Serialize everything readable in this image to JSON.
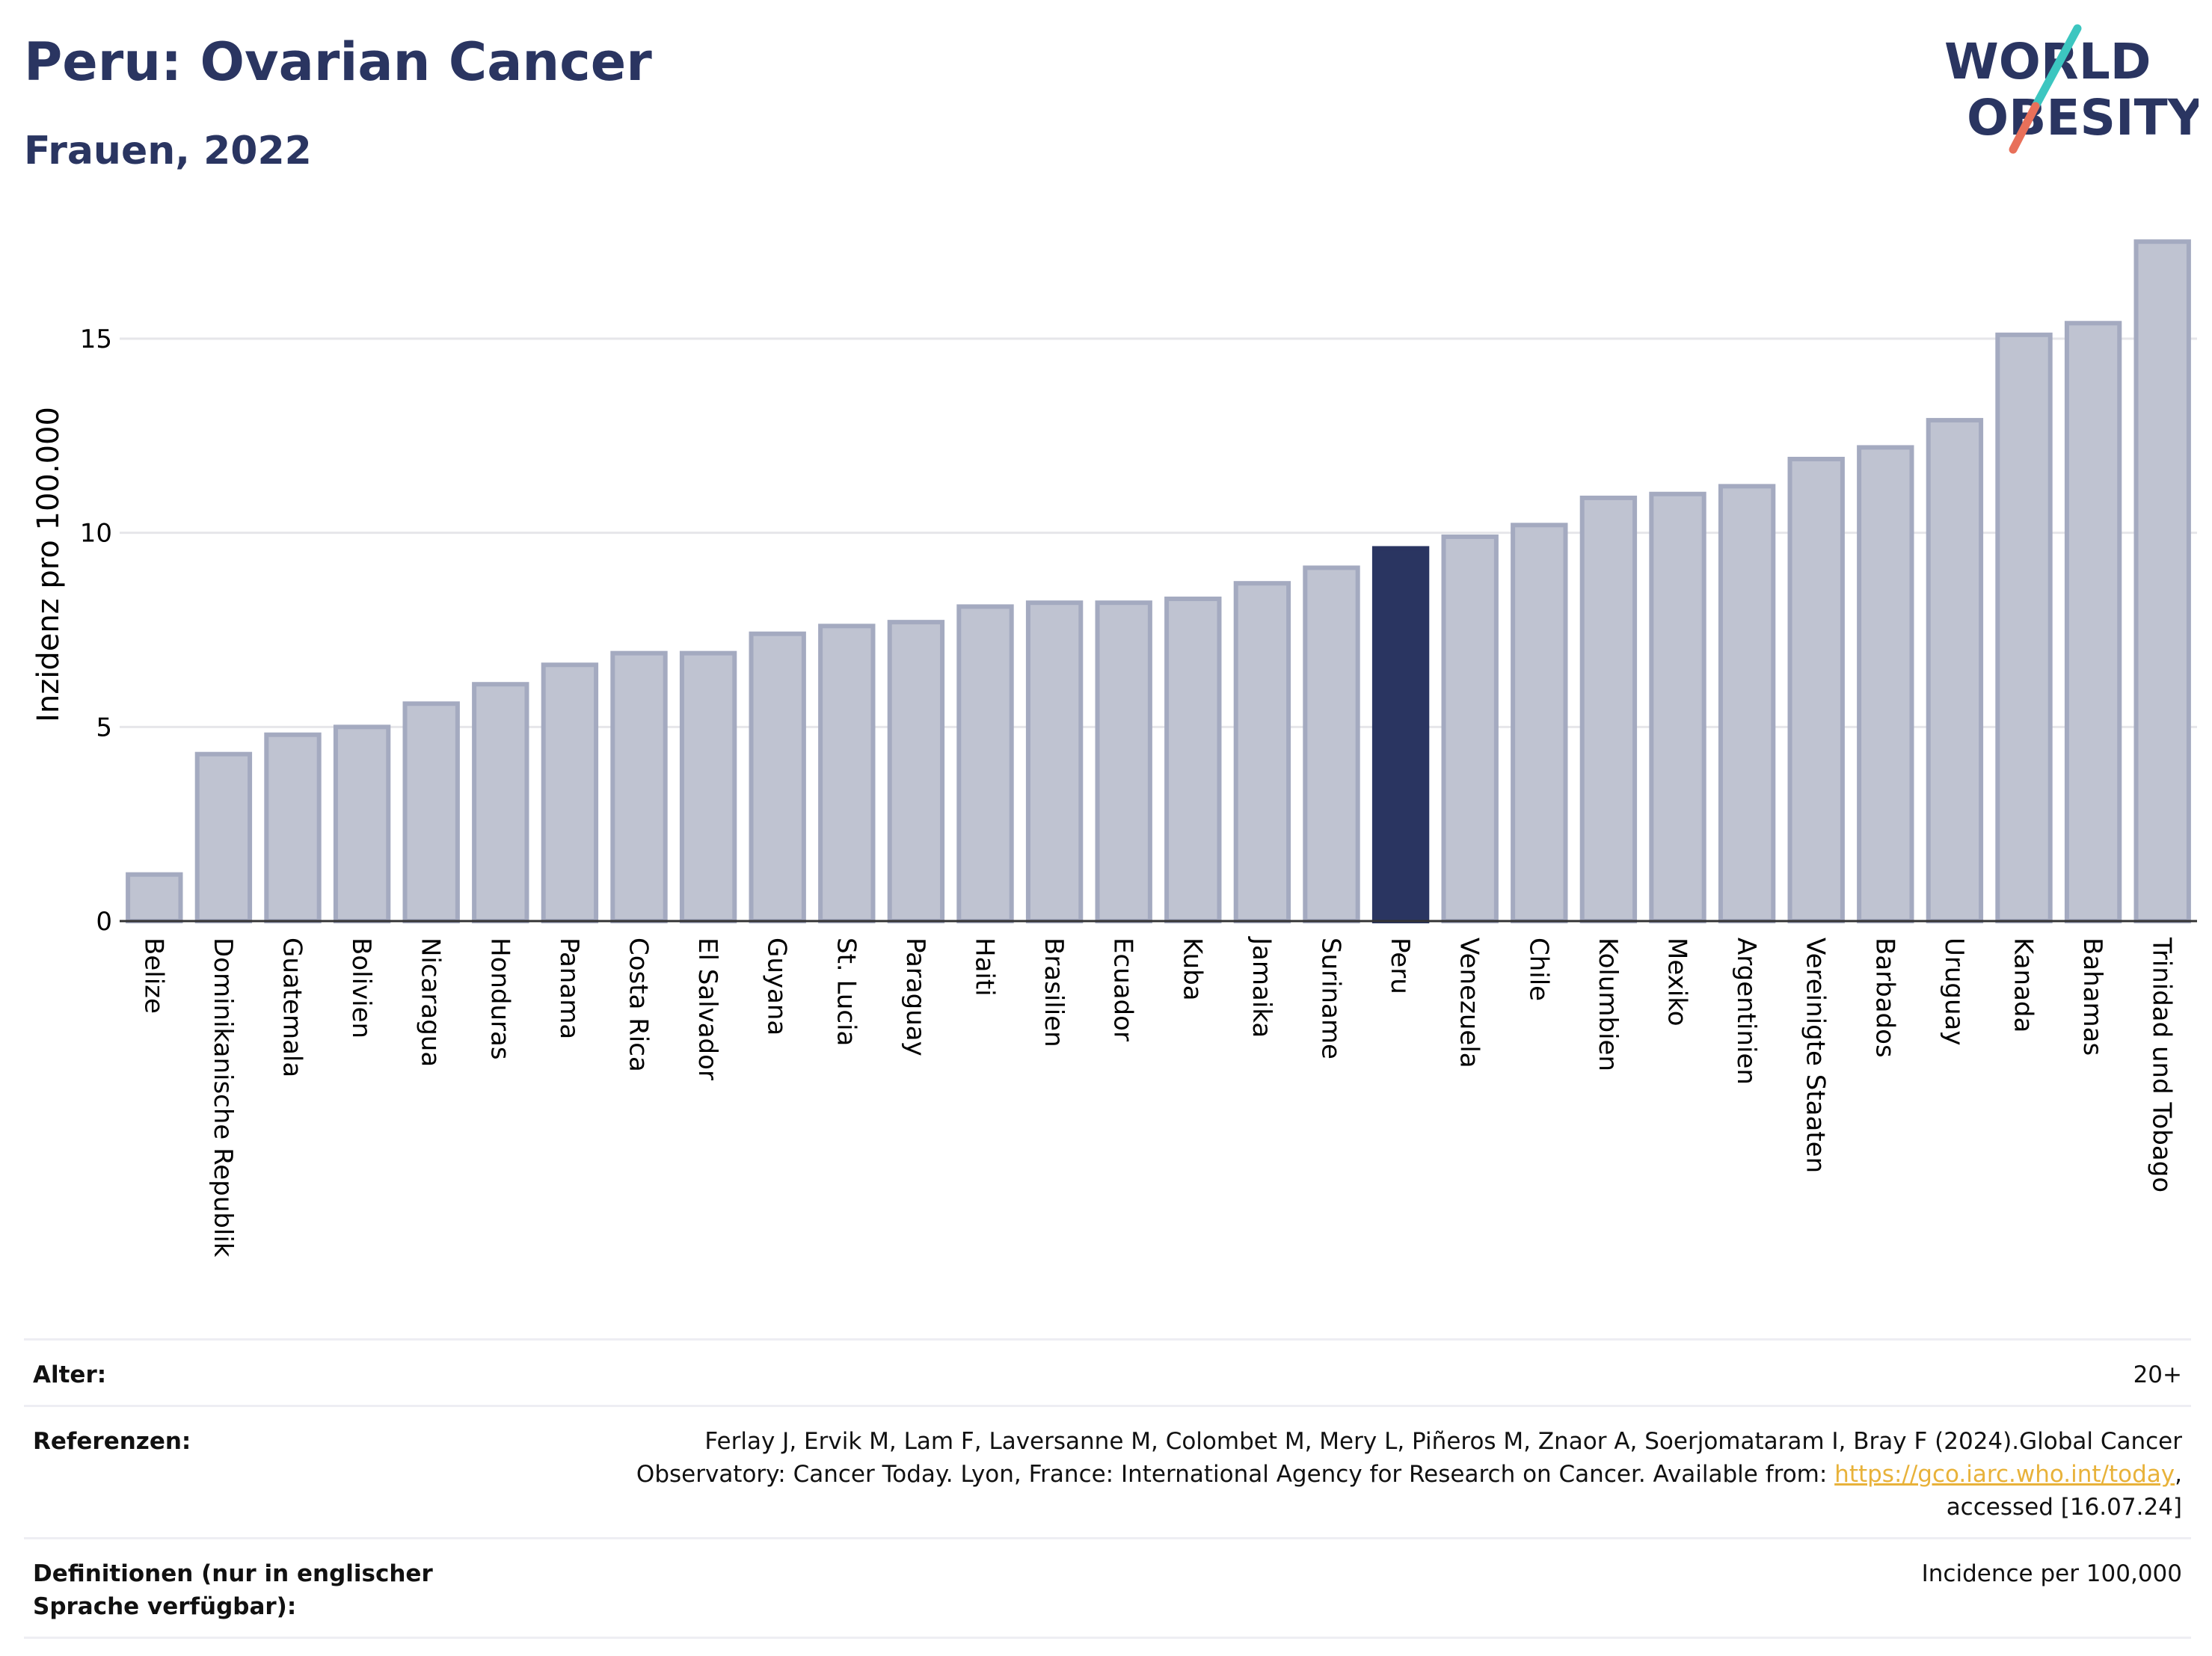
{
  "header": {
    "title": "Peru: Ovarian Cancer",
    "subtitle": "Frauen, 2022",
    "logo_text_line1": "WORLD",
    "logo_text_line2": "OBESITY"
  },
  "colors": {
    "highlight": "#2a3561",
    "bar_fill": "#bfc3d1",
    "bar_stroke": "#a4aac0",
    "grid": "#e6e6ea",
    "logo_teal": "#3cc6c0",
    "logo_coral": "#e8705a"
  },
  "chart_data": {
    "type": "bar",
    "ylabel": "Inzidenz pro 100.000",
    "xlabel": "",
    "ylim": [
      0,
      17.6
    ],
    "yticks": [
      0,
      5,
      10,
      15
    ],
    "grid": true,
    "highlight_category": "Peru",
    "categories": [
      "Belize",
      "Dominikanische Republik",
      "Guatemala",
      "Bolivien",
      "Nicaragua",
      "Honduras",
      "Panama",
      "Costa Rica",
      "El Salvador",
      "Guyana",
      "St. Lucia",
      "Paraguay",
      "Haiti",
      "Brasilien",
      "Ecuador",
      "Kuba",
      "Jamaika",
      "Suriname",
      "Peru",
      "Venezuela",
      "Chile",
      "Kolumbien",
      "Mexiko",
      "Argentinien",
      "Vereinigte Staaten",
      "Barbados",
      "Uruguay",
      "Kanada",
      "Bahamas",
      "Trinidad und Tobago"
    ],
    "values": [
      1.2,
      4.3,
      4.8,
      5.0,
      5.6,
      6.1,
      6.6,
      6.9,
      6.9,
      7.4,
      7.6,
      7.7,
      8.1,
      8.2,
      8.2,
      8.3,
      8.7,
      9.1,
      9.6,
      9.9,
      10.2,
      10.9,
      11.0,
      11.2,
      11.9,
      12.2,
      12.9,
      15.1,
      15.4,
      17.5
    ]
  },
  "meta": {
    "rows": [
      {
        "key": "Alter:",
        "value": "20+"
      },
      {
        "key": "Referenzen:",
        "value_pre": "Ferlay J, Ervik M, Lam F, Laversanne M, Colombet M, Mery L, Piñeros M, Znaor A, Soerjomataram I, Bray F (2024).Global Cancer Observatory: Cancer Today. Lyon, France: International Agency for Research on Cancer. Available from: ",
        "link": "https://gco.iarc.who.int/today",
        "value_post": ", accessed [16.07.24]"
      },
      {
        "key": "Definitionen (nur in englischer Sprache verfügbar):",
        "value": "Incidence per 100,000"
      }
    ]
  }
}
